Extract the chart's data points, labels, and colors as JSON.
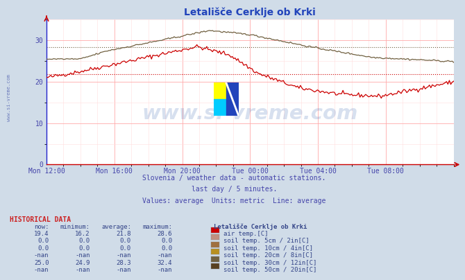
{
  "title": "Letališče Cerklje ob Krki",
  "bg_color": "#d0dce8",
  "plot_bg_color": "#ffffff",
  "grid_color_major": "#ffaaaa",
  "grid_color_minor": "#ffdddd",
  "tick_color": "#4444aa",
  "title_color": "#2244bb",
  "watermark_text": "www.si-vreme.com",
  "watermark_color": "#2255aa",
  "watermark_alpha": 0.18,
  "subtitle1": "Slovenia / weather data - automatic stations.",
  "subtitle2": "last day / 5 minutes.",
  "subtitle3": "Values: average  Units: metric  Line: average",
  "subtitle_color": "#4444aa",
  "hist_title": "HISTORICAL DATA",
  "hist_title_color": "#cc2222",
  "col_headers": [
    "now:",
    "minimum:",
    "average:",
    "maximum:",
    "Letališče Cerklje ob Krki"
  ],
  "rows": [
    {
      "now": "19.4",
      "min": "16.2",
      "avg": "21.8",
      "max": "28.6",
      "color": "#cc0000",
      "label": "air temp.[C]"
    },
    {
      "now": "0.0",
      "min": "0.0",
      "avg": "0.0",
      "max": "0.0",
      "color": "#c09080",
      "label": "soil temp. 5cm / 2in[C]"
    },
    {
      "now": "0.0",
      "min": "0.0",
      "avg": "0.0",
      "max": "0.0",
      "color": "#a07040",
      "label": "soil temp. 10cm / 4in[C]"
    },
    {
      "now": "-nan",
      "min": "-nan",
      "avg": "-nan",
      "max": "-nan",
      "color": "#b89020",
      "label": "soil temp. 20cm / 8in[C]"
    },
    {
      "now": "25.0",
      "min": "24.9",
      "avg": "28.3",
      "max": "32.4",
      "color": "#706040",
      "label": "soil temp. 30cm / 12in[C]"
    },
    {
      "now": "-nan",
      "min": "-nan",
      "avg": "-nan",
      "max": "-nan",
      "color": "#584020",
      "label": "soil temp. 50cm / 20in[C]"
    }
  ],
  "ylim": [
    0,
    35
  ],
  "yticks": [
    0,
    10,
    20,
    30
  ],
  "xtick_labels": [
    "Mon 12:00",
    "Mon 16:00",
    "Mon 20:00",
    "Tue 00:00",
    "Tue 04:00",
    "Tue 08:00"
  ],
  "air_temp_color": "#cc0000",
  "soil30_color": "#706040",
  "air_avg": 21.8,
  "soil30_avg": 28.3,
  "left_label": "www.si-vreme.com"
}
